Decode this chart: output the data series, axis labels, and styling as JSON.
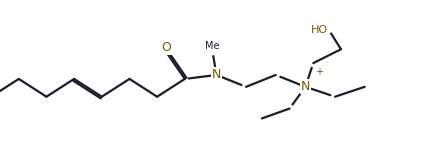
{
  "background_color": "#ffffff",
  "line_color": "#1c1c2e",
  "atom_color": "#7B5800",
  "bond_width": 1.6,
  "figure_width": 4.22,
  "figure_height": 1.44,
  "dpi": 100,
  "xlim": [
    -0.05,
    4.22
  ],
  "ylim": [
    0.0,
    1.44
  ],
  "font_size_atom": 9,
  "font_size_small": 8
}
